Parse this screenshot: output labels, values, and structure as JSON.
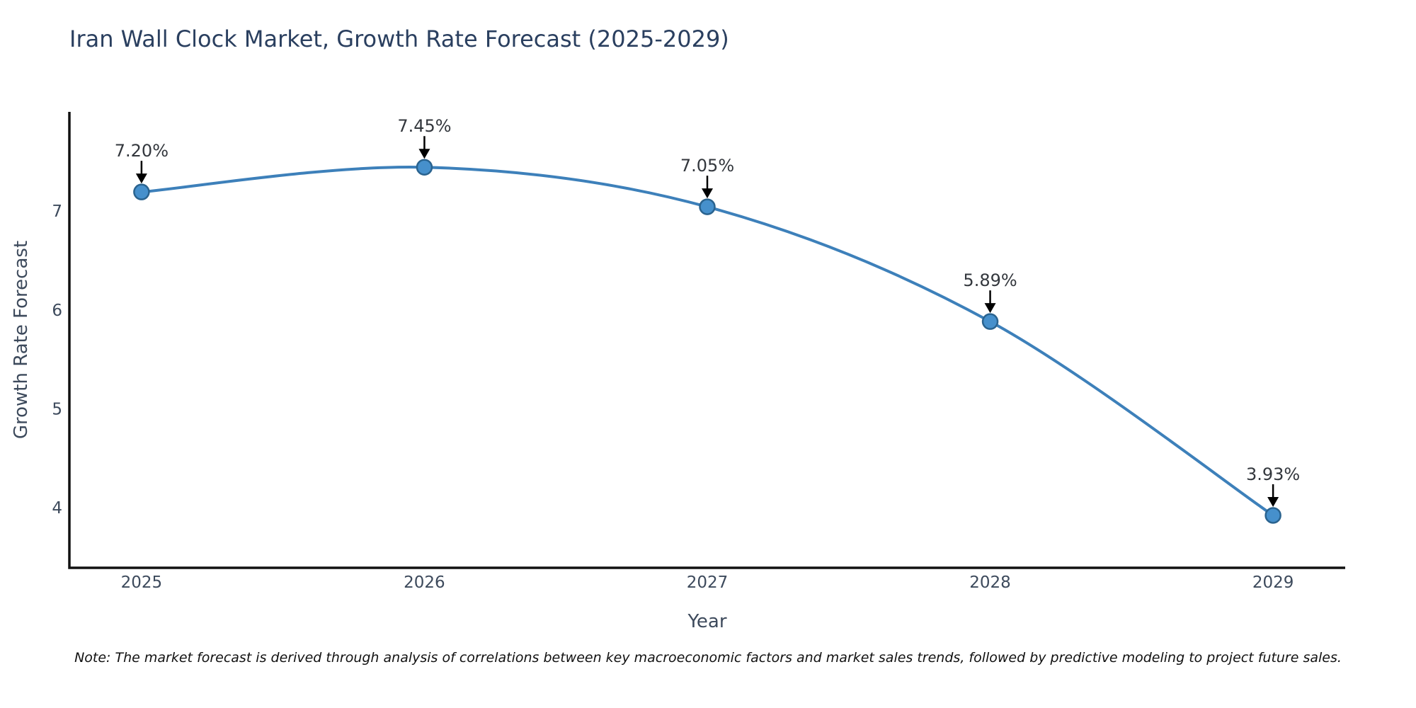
{
  "page": {
    "title": "Iran Wall Clock Market, Growth Rate Forecast (2025-2029)",
    "note": "Note: The market forecast is derived through analysis of correlations between key macroeconomic factors and market sales trends, followed by predictive modeling to project future sales."
  },
  "chart_data": {
    "type": "line",
    "title": "Iran Wall Clock Market, Growth Rate Forecast (2025-2029)",
    "xlabel": "Year",
    "ylabel": "Growth Rate Forecast",
    "x": [
      2025,
      2026,
      2027,
      2028,
      2029
    ],
    "values": [
      7.2,
      7.45,
      7.05,
      5.89,
      3.93
    ],
    "point_labels": [
      "7.20%",
      "7.45%",
      "7.05%",
      "5.89%",
      "3.93%"
    ],
    "x_tick_labels": [
      "2025",
      "2026",
      "2027",
      "2028",
      "2029"
    ],
    "y_tick_values": [
      4,
      5,
      6,
      7
    ],
    "y_tick_labels": [
      "4",
      "5",
      "6",
      "7"
    ],
    "xlim": [
      2024.745,
      2029.255
    ],
    "ylim": [
      3.4,
      8.01
    ],
    "grid": false,
    "legend": "none",
    "line_shape": "spline",
    "colors": {
      "line": "#3d80ba",
      "marker_fill": "#4690cc",
      "marker_edge": "#2a638f",
      "annotation_text": "#33373d",
      "arrow": "#000000",
      "axis_line": "#111111",
      "tick_text": "#3d4a5c",
      "axis_title_text": "#3d4a5c",
      "title_text": "#2a3f5f",
      "note_text": "#111111",
      "background": "#ffffff"
    }
  }
}
